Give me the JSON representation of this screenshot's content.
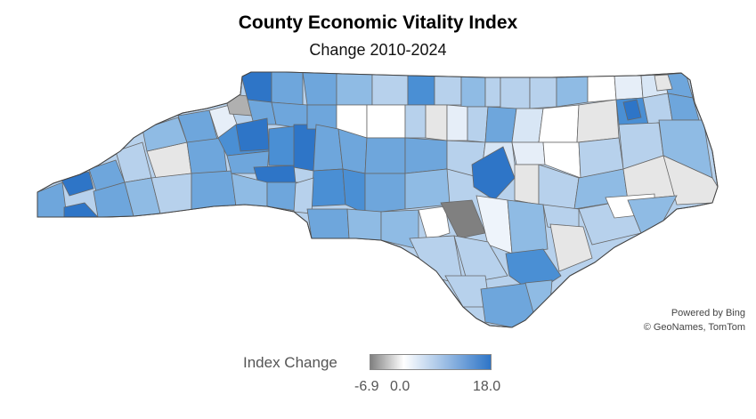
{
  "map": {
    "title": "County Economic Vitality Index",
    "subtitle": "Change 2010-2024",
    "attribution": [
      "Powered by Bing",
      "© GeoNames, TomTom"
    ]
  },
  "legend": {
    "title": "Index Change",
    "min_label": "-6.9",
    "zero_label": "0.0",
    "max_label": "18.0",
    "color_low": "#808080",
    "color_zero": "#ffffff",
    "color_high": "#2e75c7"
  }
}
